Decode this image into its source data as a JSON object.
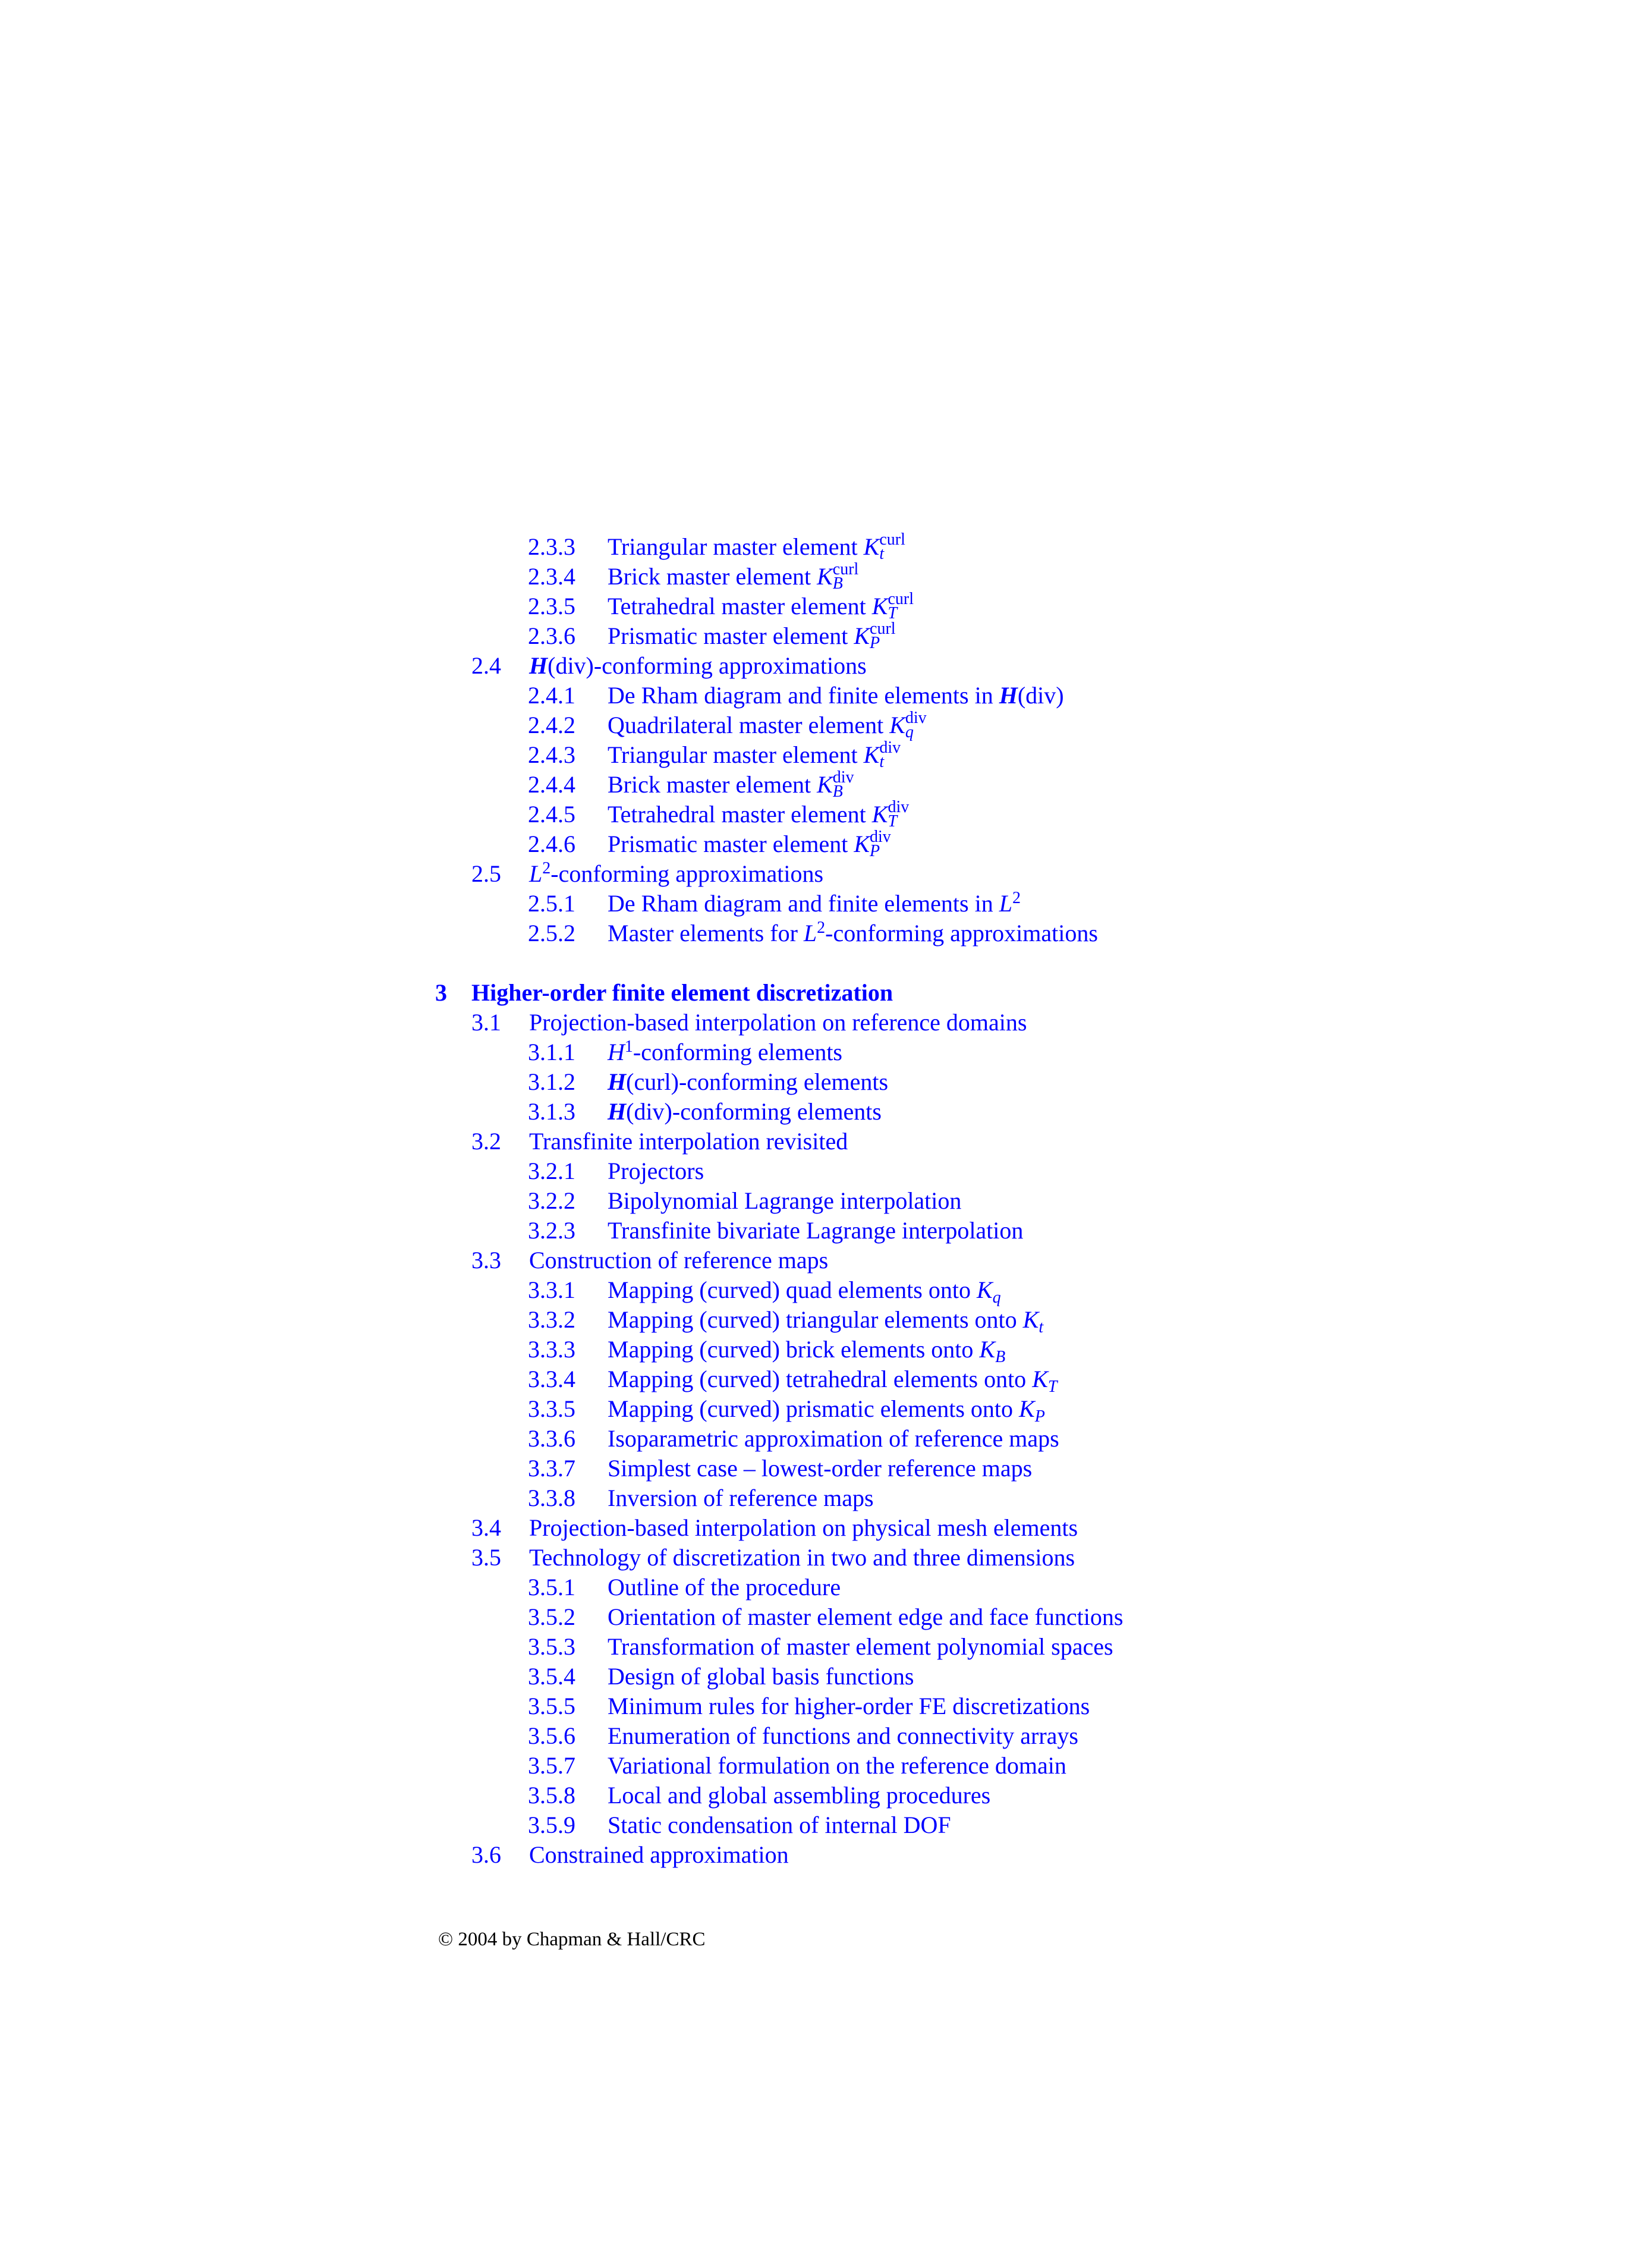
{
  "toc": [
    {
      "level": 2,
      "num": "2.3.3",
      "segs": [
        {
          "t": "Triangular master element "
        },
        {
          "ks": "K",
          "sub": "t",
          "sup": "curl"
        }
      ]
    },
    {
      "level": 2,
      "num": "2.3.4",
      "segs": [
        {
          "t": "Brick master element "
        },
        {
          "ks": "K",
          "sub": "B",
          "sup": "curl"
        }
      ]
    },
    {
      "level": 2,
      "num": "2.3.5",
      "segs": [
        {
          "t": "Tetrahedral master element "
        },
        {
          "ks": "K",
          "sub": "T",
          "sup": "curl"
        }
      ]
    },
    {
      "level": 2,
      "num": "2.3.6",
      "segs": [
        {
          "t": "Prismatic master element "
        },
        {
          "ks": "K",
          "sub": "P",
          "sup": "curl"
        }
      ]
    },
    {
      "level": 1,
      "num": "2.4",
      "segs": [
        {
          "t": "H",
          "s": "b"
        },
        {
          "t": "(div)-conforming approximations"
        }
      ]
    },
    {
      "level": 2,
      "num": "2.4.1",
      "segs": [
        {
          "t": "De Rham diagram and finite elements in "
        },
        {
          "t": "H",
          "s": "b"
        },
        {
          "t": "(div)"
        }
      ]
    },
    {
      "level": 2,
      "num": "2.4.2",
      "segs": [
        {
          "t": "Quadrilateral master element "
        },
        {
          "ks": "K",
          "sub": "q",
          "sup": "div"
        }
      ]
    },
    {
      "level": 2,
      "num": "2.4.3",
      "segs": [
        {
          "t": "Triangular master element "
        },
        {
          "ks": "K",
          "sub": "t",
          "sup": "div"
        }
      ]
    },
    {
      "level": 2,
      "num": "2.4.4",
      "segs": [
        {
          "t": "Brick master element "
        },
        {
          "ks": "K",
          "sub": "B",
          "sup": "div"
        }
      ]
    },
    {
      "level": 2,
      "num": "2.4.5",
      "segs": [
        {
          "t": "Tetrahedral master element "
        },
        {
          "ks": "K",
          "sub": "T",
          "sup": "div"
        }
      ]
    },
    {
      "level": 2,
      "num": "2.4.6",
      "segs": [
        {
          "t": "Prismatic master element "
        },
        {
          "ks": "K",
          "sub": "P",
          "sup": "div"
        }
      ]
    },
    {
      "level": 1,
      "num": "2.5",
      "segs": [
        {
          "t": "L",
          "s": "i"
        },
        {
          "t": "2",
          "s": "sup"
        },
        {
          "t": "-conforming approximations"
        }
      ]
    },
    {
      "level": 2,
      "num": "2.5.1",
      "segs": [
        {
          "t": "De Rham diagram and finite elements in "
        },
        {
          "t": "L",
          "s": "i"
        },
        {
          "t": "2",
          "s": "sup"
        }
      ]
    },
    {
      "level": 2,
      "num": "2.5.2",
      "segs": [
        {
          "t": "Master elements for "
        },
        {
          "t": "L",
          "s": "i"
        },
        {
          "t": "2",
          "s": "sup"
        },
        {
          "t": "-conforming approximations"
        }
      ]
    },
    {
      "level": 0,
      "num": "3",
      "segs": [
        {
          "t": "Higher-order finite element discretization"
        }
      ]
    },
    {
      "level": 1,
      "num": "3.1",
      "segs": [
        {
          "t": "Projection-based interpolation on reference domains"
        }
      ]
    },
    {
      "level": 2,
      "num": "3.1.1",
      "segs": [
        {
          "t": "H",
          "s": "i"
        },
        {
          "t": "1",
          "s": "sup"
        },
        {
          "t": "-conforming elements"
        }
      ]
    },
    {
      "level": 2,
      "num": "3.1.2",
      "segs": [
        {
          "t": "H",
          "s": "b"
        },
        {
          "t": "(curl)-conforming elements"
        }
      ]
    },
    {
      "level": 2,
      "num": "3.1.3",
      "segs": [
        {
          "t": "H",
          "s": "b"
        },
        {
          "t": "(div)-conforming elements"
        }
      ]
    },
    {
      "level": 1,
      "num": "3.2",
      "segs": [
        {
          "t": "Transfinite interpolation revisited"
        }
      ]
    },
    {
      "level": 2,
      "num": "3.2.1",
      "segs": [
        {
          "t": "Projectors"
        }
      ]
    },
    {
      "level": 2,
      "num": "3.2.2",
      "segs": [
        {
          "t": "Bipolynomial Lagrange interpolation"
        }
      ]
    },
    {
      "level": 2,
      "num": "3.2.3",
      "segs": [
        {
          "t": "Transfinite bivariate Lagrange interpolation"
        }
      ]
    },
    {
      "level": 1,
      "num": "3.3",
      "segs": [
        {
          "t": "Construction of reference maps"
        }
      ]
    },
    {
      "level": 2,
      "num": "3.3.1",
      "segs": [
        {
          "t": "Mapping (curved) quad elements onto "
        },
        {
          "t": "K",
          "s": "i"
        },
        {
          "t": "q",
          "s": "subq"
        }
      ]
    },
    {
      "level": 2,
      "num": "3.3.2",
      "segs": [
        {
          "t": "Mapping (curved) triangular elements onto "
        },
        {
          "t": "K",
          "s": "i"
        },
        {
          "t": "t",
          "s": "subq"
        }
      ]
    },
    {
      "level": 2,
      "num": "3.3.3",
      "segs": [
        {
          "t": "Mapping (curved) brick elements onto "
        },
        {
          "t": "K",
          "s": "i"
        },
        {
          "t": "B",
          "s": "subq"
        }
      ]
    },
    {
      "level": 2,
      "num": "3.3.4",
      "segs": [
        {
          "t": "Mapping (curved) tetrahedral elements onto "
        },
        {
          "t": "K",
          "s": "i"
        },
        {
          "t": "T",
          "s": "subq"
        }
      ]
    },
    {
      "level": 2,
      "num": "3.3.5",
      "segs": [
        {
          "t": "Mapping (curved) prismatic elements onto "
        },
        {
          "t": "K",
          "s": "i"
        },
        {
          "t": "P",
          "s": "subq"
        }
      ]
    },
    {
      "level": 2,
      "num": "3.3.6",
      "segs": [
        {
          "t": "Isoparametric approximation of reference maps"
        }
      ]
    },
    {
      "level": 2,
      "num": "3.3.7",
      "segs": [
        {
          "t": "Simplest case – lowest-order reference maps"
        }
      ]
    },
    {
      "level": 2,
      "num": "3.3.8",
      "segs": [
        {
          "t": "Inversion of reference maps"
        }
      ]
    },
    {
      "level": 1,
      "num": "3.4",
      "segs": [
        {
          "t": "Projection-based interpolation on physical mesh elements"
        }
      ]
    },
    {
      "level": 1,
      "num": "3.5",
      "segs": [
        {
          "t": "Technology of discretization in two and three dimensions"
        }
      ]
    },
    {
      "level": 2,
      "num": "3.5.1",
      "segs": [
        {
          "t": "Outline of the procedure"
        }
      ]
    },
    {
      "level": 2,
      "num": "3.5.2",
      "segs": [
        {
          "t": "Orientation of master element edge and face functions"
        }
      ]
    },
    {
      "level": 2,
      "num": "3.5.3",
      "segs": [
        {
          "t": "Transformation of master element polynomial spaces"
        }
      ]
    },
    {
      "level": 2,
      "num": "3.5.4",
      "segs": [
        {
          "t": "Design of global basis functions"
        }
      ]
    },
    {
      "level": 2,
      "num": "3.5.5",
      "segs": [
        {
          "t": "Minimum rules for higher-order FE discretizations"
        }
      ]
    },
    {
      "level": 2,
      "num": "3.5.6",
      "segs": [
        {
          "t": "Enumeration of functions and connectivity arrays"
        }
      ]
    },
    {
      "level": 2,
      "num": "3.5.7",
      "segs": [
        {
          "t": "Variational formulation on the reference domain"
        }
      ]
    },
    {
      "level": 2,
      "num": "3.5.8",
      "segs": [
        {
          "t": "Local and global assembling procedures"
        }
      ]
    },
    {
      "level": 2,
      "num": "3.5.9",
      "segs": [
        {
          "t": "Static condensation of internal DOF"
        }
      ]
    },
    {
      "level": 1,
      "num": "3.6",
      "segs": [
        {
          "t": "Constrained approximation"
        }
      ]
    }
  ],
  "footer": {
    "copyright": "© 2004 by Chapman & Hall/CRC"
  },
  "colors": {
    "link": "#0000ff",
    "text": "#000000"
  }
}
